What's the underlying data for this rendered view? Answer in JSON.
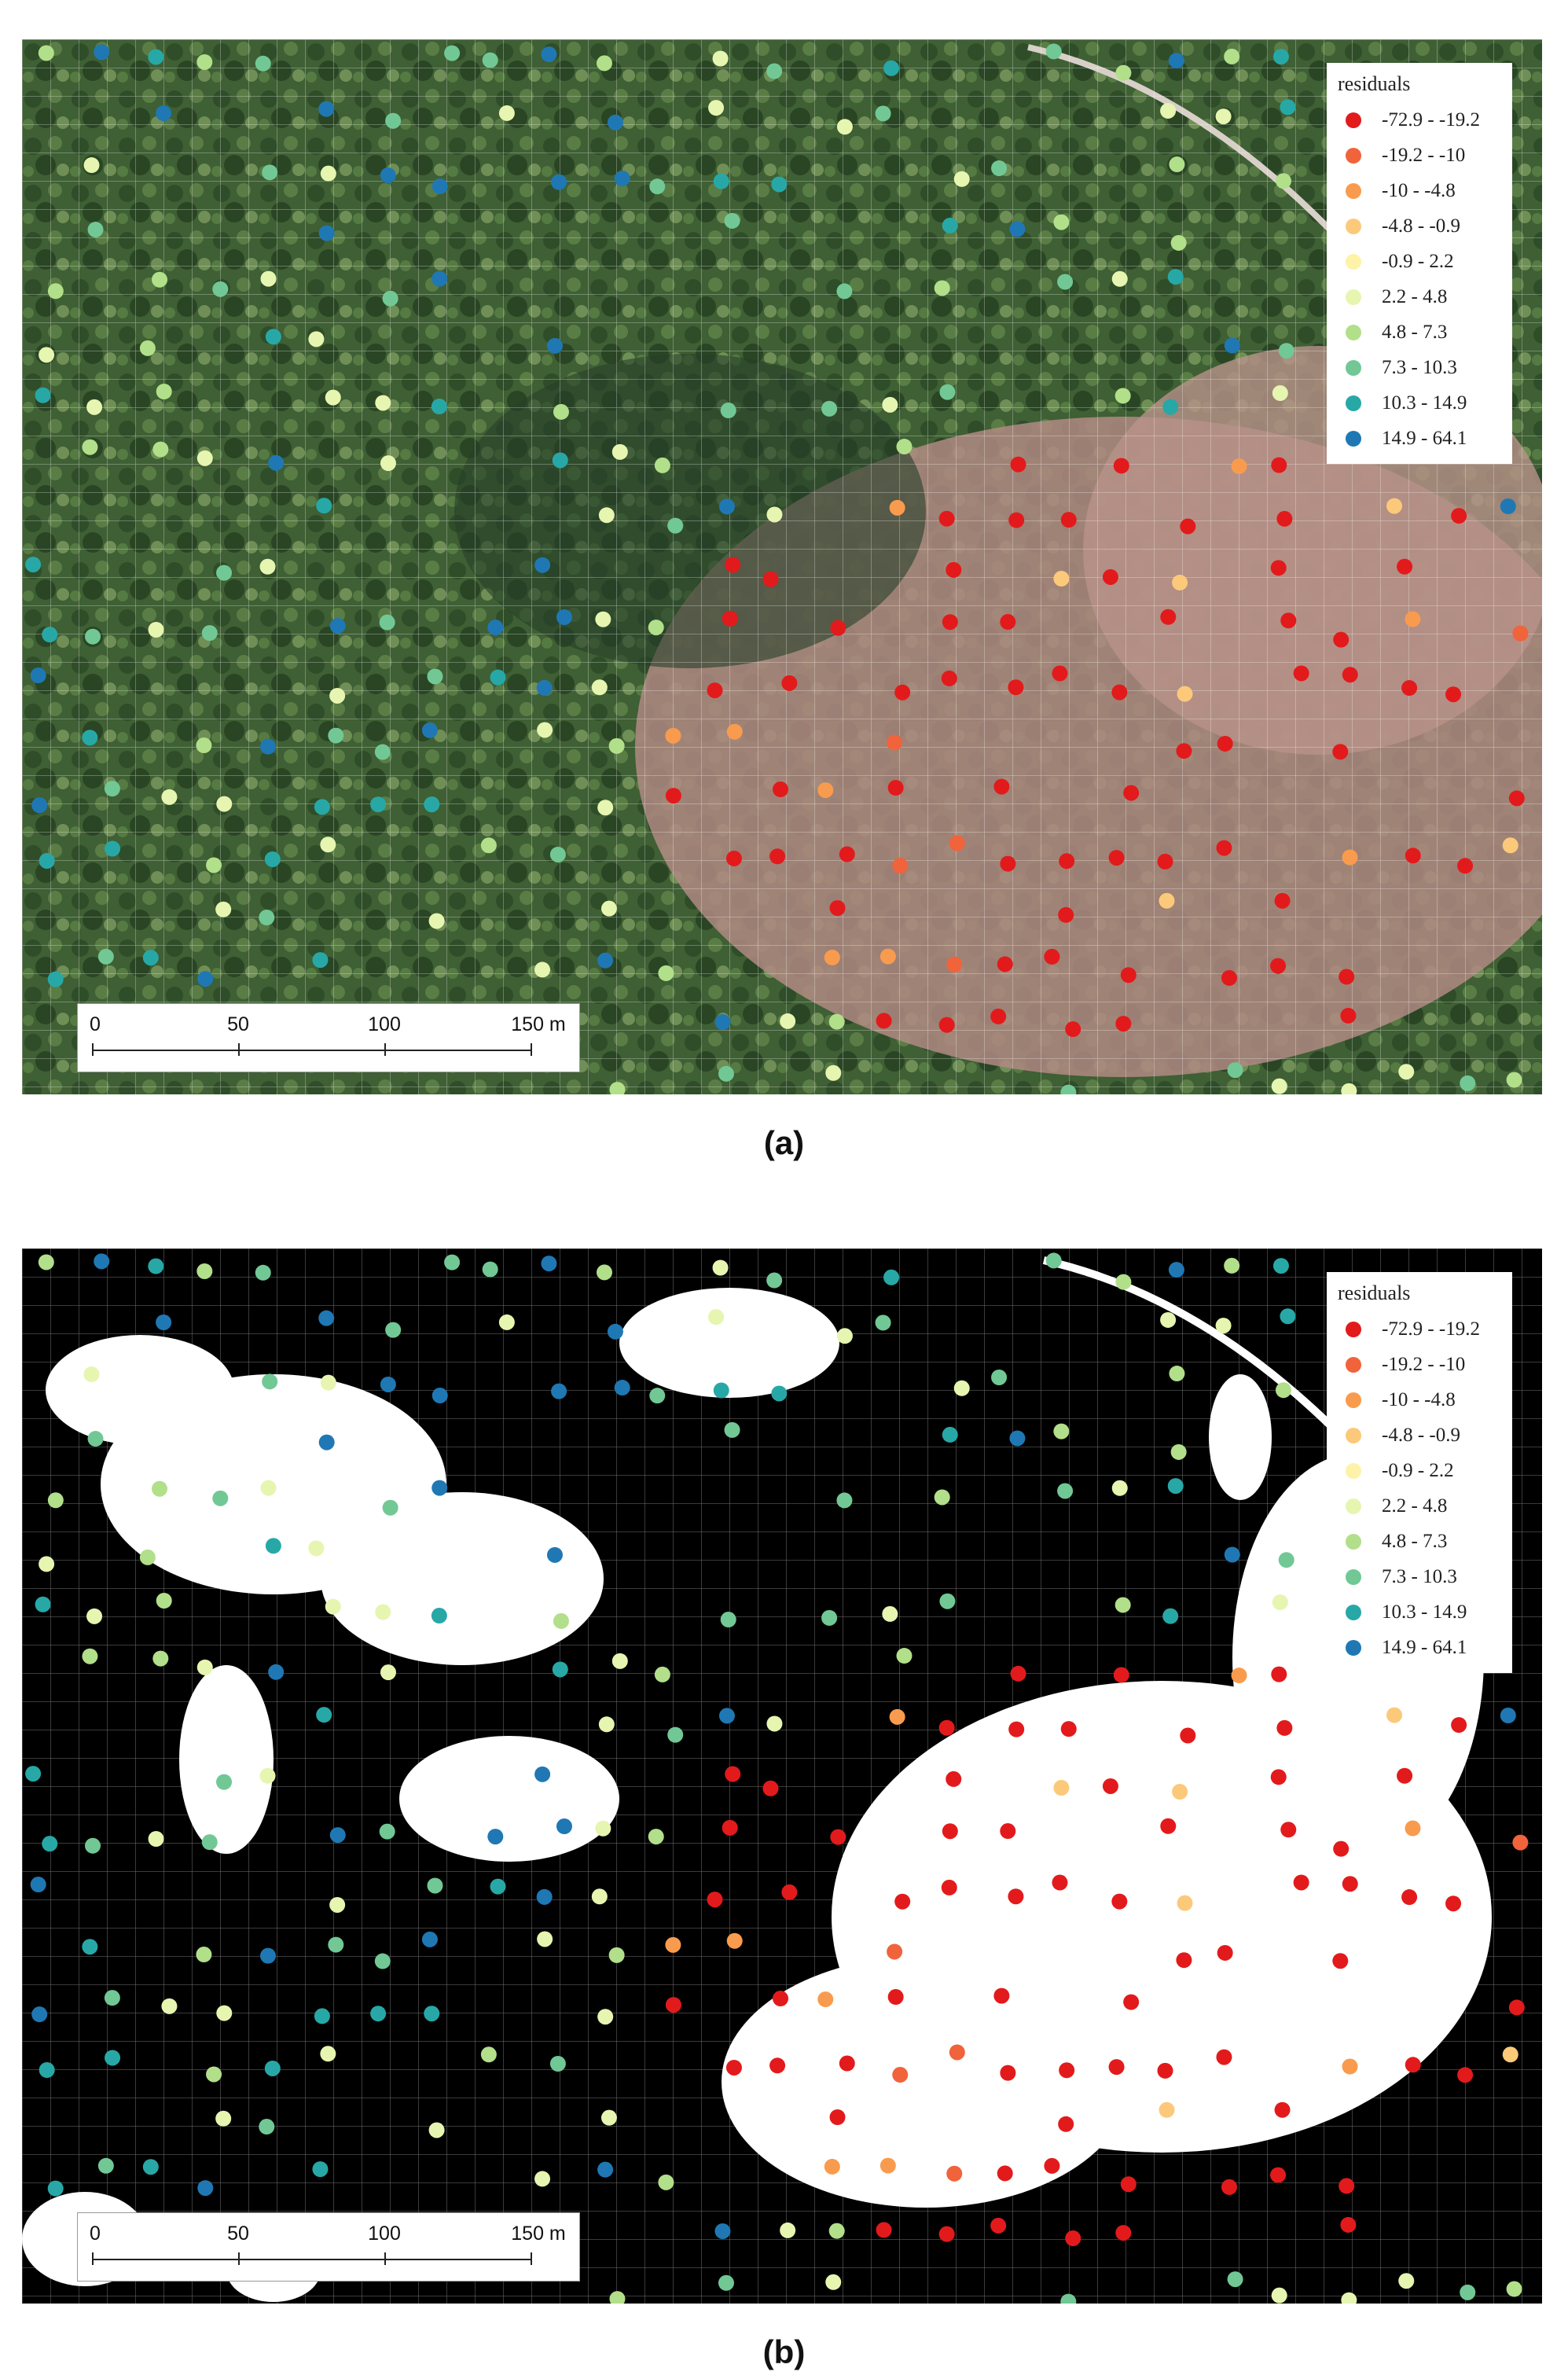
{
  "figure": {
    "panels": [
      {
        "id": "a",
        "caption": "(a)",
        "background": "orthophoto",
        "legend": {
          "title": "residuals",
          "classes": [
            {
              "label": "-72.9 - -19.2",
              "color": "#e31a1c"
            },
            {
              "label": "-19.2 - -10",
              "color": "#f0633b"
            },
            {
              "label": "-10 - -4.8",
              "color": "#f99b4e"
            },
            {
              "label": "-4.8 - -0.9",
              "color": "#fcc97a"
            },
            {
              "label": "-0.9 - 2.2",
              "color": "#fdf2a8"
            },
            {
              "label": "2.2 - 4.8",
              "color": "#e6f5b0"
            },
            {
              "label": "4.8 - 7.3",
              "color": "#b2df8a"
            },
            {
              "label": "7.3 - 10.3",
              "color": "#71c895"
            },
            {
              "label": "10.3 - 14.9",
              "color": "#27a8a7"
            },
            {
              "label": "14.9 - 64.1",
              "color": "#1f78b4"
            }
          ]
        },
        "scalebar": {
          "ticks": [
            "0",
            "50",
            "100",
            "150 m"
          ]
        }
      },
      {
        "id": "b",
        "caption": "(b)",
        "background": "binary canopy mask",
        "legend": {
          "title": "residuals",
          "classes": [
            {
              "label": "-72.9 - -19.2",
              "color": "#e31a1c"
            },
            {
              "label": "-19.2 - -10",
              "color": "#f0633b"
            },
            {
              "label": "-10 - -4.8",
              "color": "#f99b4e"
            },
            {
              "label": "-4.8 - -0.9",
              "color": "#fcc97a"
            },
            {
              "label": "-0.9 - 2.2",
              "color": "#fdf2a8"
            },
            {
              "label": "2.2 - 4.8",
              "color": "#e6f5b0"
            },
            {
              "label": "4.8 - 7.3",
              "color": "#b2df8a"
            },
            {
              "label": "7.3 - 10.3",
              "color": "#71c895"
            },
            {
              "label": "10.3 - 14.9",
              "color": "#27a8a7"
            },
            {
              "label": "14.9 - 64.1",
              "color": "#1f78b4"
            }
          ]
        },
        "scalebar": {
          "ticks": [
            "0",
            "50",
            "100",
            "150 m"
          ]
        }
      }
    ]
  }
}
